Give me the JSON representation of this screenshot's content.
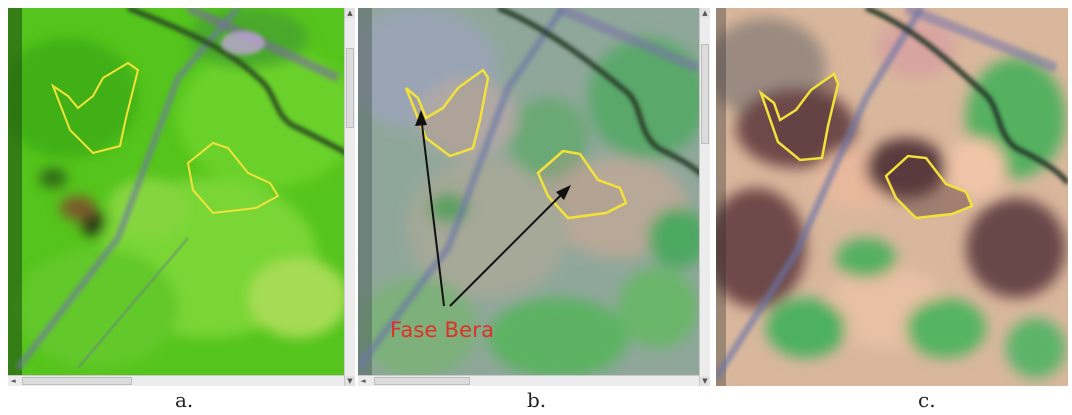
{
  "panels": [
    {
      "id": "a",
      "caption": "a.",
      "composite": "green-dominant"
    },
    {
      "id": "b",
      "caption": "b.",
      "composite": "natural-color",
      "annotation": "Fase Bera"
    },
    {
      "id": "c",
      "caption": "c.",
      "composite": "false-color-brown"
    }
  ],
  "colors": {
    "polygon_outline": "#f2e23a",
    "annotation_text": "#e0302a",
    "arrow": "#111111"
  },
  "icons": {
    "scroll_up": "▲",
    "scroll_down": "▼",
    "scroll_left": "◄"
  }
}
